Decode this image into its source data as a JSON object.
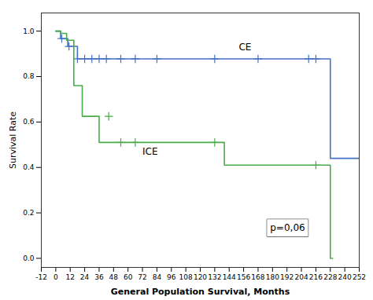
{
  "chart_data": {
    "type": "step",
    "xlabel": "General Population Survival, Months",
    "ylabel": "Survival Rate",
    "xlim": [
      -12,
      252
    ],
    "ylim": [
      -0.04,
      1.08
    ],
    "xticks": [
      -12,
      0,
      12,
      24,
      36,
      48,
      60,
      72,
      84,
      96,
      108,
      120,
      132,
      144,
      156,
      168,
      180,
      192,
      204,
      216,
      228,
      240,
      252
    ],
    "yticks": [
      {
        "value": 0.0,
        "label": "0.0"
      },
      0.2,
      0.4,
      0.6,
      0.8,
      {
        "value": 1.0,
        "label": "1.0"
      }
    ],
    "grid": false,
    "legend": false,
    "series": [
      {
        "name": "CE",
        "color": "#4472c4",
        "x": [
          0,
          4,
          4,
          10,
          10,
          18,
          228,
          228,
          252
        ],
        "values": [
          1.0,
          1.0,
          0.967,
          0.967,
          0.933,
          0.878,
          0.878,
          0.44,
          0.44
        ],
        "censors": {
          "marker": "plus",
          "x": [
            5,
            11,
            18,
            24,
            30,
            36,
            42,
            54,
            66,
            84,
            132,
            168,
            210,
            216
          ],
          "values": [
            0.967,
            0.933,
            0.878,
            0.878,
            0.878,
            0.878,
            0.878,
            0.878,
            0.878,
            0.878,
            0.878,
            0.878,
            0.878,
            0.878
          ]
        }
      },
      {
        "name": "ICE",
        "color": "#4aab4a",
        "x": [
          0,
          4,
          4,
          9,
          9,
          15,
          15,
          22,
          22,
          36,
          36,
          44,
          44,
          140,
          140,
          228,
          228,
          230
        ],
        "values": [
          1.0,
          1.0,
          0.99,
          0.99,
          0.96,
          0.96,
          0.76,
          0.76,
          0.625,
          0.625,
          0.51,
          0.51,
          0.51,
          0.51,
          0.41,
          0.41,
          0.0,
          0.0
        ],
        "censors": {
          "marker": "plus",
          "x": [
            44,
            54,
            66,
            132,
            216
          ],
          "values": [
            0.625,
            0.51,
            0.51,
            0.51,
            0.41
          ]
        }
      }
    ],
    "annotations": [
      {
        "text": "CE",
        "x": 152,
        "y": 0.915
      },
      {
        "text": "ICE",
        "x": 72,
        "y": 0.455
      },
      {
        "text": "p=0,06",
        "x": 178,
        "y": 0.12,
        "boxed": true
      }
    ]
  }
}
